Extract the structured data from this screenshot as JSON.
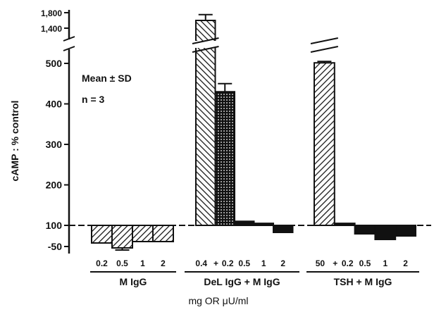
{
  "chart_data": {
    "type": "bar",
    "y_label": "cAMP : % control",
    "x_label": "mg OR μU/ml",
    "annotations": [
      "Mean ± SD",
      "n = 3"
    ],
    "baseline": 100,
    "ylim_segments": [
      [
        -50,
        100
      ],
      [
        100,
        500
      ],
      [
        1400,
        1800
      ]
    ],
    "yticks": [
      {
        "value": 1800,
        "label": "1,800"
      },
      {
        "value": 1400,
        "label": "1,400"
      },
      500,
      400,
      300,
      200,
      100,
      -50
    ],
    "groups": [
      {
        "label": "M IgG",
        "joiner": null,
        "categories": [
          "0.2",
          "0.5",
          "1",
          "2"
        ],
        "values": [
          -25,
          -60,
          -15,
          -15
        ],
        "errors": [
          null,
          15,
          null,
          null
        ],
        "patterns": [
          "hatch",
          "hatch",
          "hatch",
          "hatch"
        ]
      },
      {
        "label": "DeL IgG + M IgG",
        "joiner": "+",
        "categories": [
          "0.4",
          "0.2",
          "0.5",
          "1",
          "2"
        ],
        "values": [
          1600,
          430,
          110,
          105,
          50
        ],
        "errors": [
          150,
          20,
          null,
          null,
          null
        ],
        "patterns": [
          "backhatch",
          "dots",
          "solid",
          "solid",
          "solid"
        ]
      },
      {
        "label": "TSH + M IgG",
        "joiner": "+",
        "categories": [
          "50",
          "0.2",
          "0.5",
          "1",
          "2"
        ],
        "values": [
          505,
          105,
          40,
          0,
          25
        ],
        "errors": [
          35,
          null,
          null,
          null,
          null
        ],
        "patterns": [
          "hatch",
          "solid",
          "solid",
          "solid",
          "solid"
        ]
      }
    ]
  }
}
